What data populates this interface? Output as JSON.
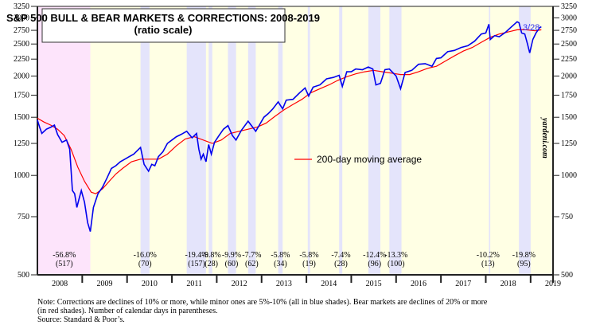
{
  "chart_data": {
    "type": "line",
    "title": "S&P 500 BULL & BEAR MARKETS & CORRECTIONS: 2008-2019",
    "subtitle": "(ratio scale)",
    "y_scale": "log",
    "ylim": [
      500,
      3250
    ],
    "y_ticks": [
      500,
      750,
      1000,
      1250,
      1500,
      1750,
      2000,
      2250,
      2500,
      2750,
      3000,
      3250
    ],
    "xlim": [
      2008.0,
      2019.5
    ],
    "x_ticks": [
      "2008",
      "2009",
      "2010",
      "2011",
      "2012",
      "2013",
      "2014",
      "2015",
      "2016",
      "2017",
      "2018",
      "2019"
    ],
    "legend": {
      "label": "200-day moving average",
      "color": "#ff0000",
      "position": "center-right"
    },
    "last_label": "3/28",
    "watermark": "yardeni.com",
    "colors": {
      "price": "#0000ee",
      "ma": "#ff0000",
      "bull": "#ffffe4",
      "bear": "#fde4fb",
      "correction": "#e4e4fb"
    },
    "bear_shades": [
      [
        2008.0,
        2009.18
      ]
    ],
    "correction_shades": [
      [
        2010.3,
        2010.5
      ],
      [
        2011.33,
        2011.76
      ],
      [
        2011.82,
        2011.9
      ],
      [
        2012.25,
        2012.43
      ],
      [
        2012.7,
        2012.87
      ],
      [
        2013.37,
        2013.47
      ],
      [
        2014.03,
        2014.08
      ],
      [
        2014.73,
        2014.8
      ],
      [
        2015.38,
        2015.65
      ],
      [
        2015.85,
        2016.12
      ],
      [
        2018.07,
        2018.1
      ],
      [
        2018.74,
        2019.0
      ]
    ],
    "annotations": [
      {
        "x": 2008.6,
        "pct": "-56.8%",
        "days": "(517)"
      },
      {
        "x": 2010.4,
        "pct": "-16.0%",
        "days": "(70)"
      },
      {
        "x": 2011.55,
        "pct": "-19.4%",
        "days": "(157)"
      },
      {
        "x": 2011.88,
        "pct": "-9.8%",
        "days": "(28)"
      },
      {
        "x": 2012.33,
        "pct": "-9.9%",
        "days": "(60)"
      },
      {
        "x": 2012.78,
        "pct": "-7.7%",
        "days": "(62)"
      },
      {
        "x": 2013.42,
        "pct": "-5.8%",
        "days": "(34)"
      },
      {
        "x": 2014.06,
        "pct": "-5.8%",
        "days": "(19)"
      },
      {
        "x": 2014.77,
        "pct": "-7.4%",
        "days": "(28)"
      },
      {
        "x": 2015.52,
        "pct": "-12.4%",
        "days": "(96)"
      },
      {
        "x": 2016.0,
        "pct": "-13.3%",
        "days": "(100)"
      },
      {
        "x": 2018.05,
        "pct": "-10.2%",
        "days": "(13)"
      },
      {
        "x": 2018.85,
        "pct": "-19.8%",
        "days": "(95)"
      }
    ],
    "series": [
      {
        "name": "S&P 500",
        "points": [
          [
            2008.0,
            1470
          ],
          [
            2008.05,
            1400
          ],
          [
            2008.1,
            1340
          ],
          [
            2008.2,
            1380
          ],
          [
            2008.3,
            1400
          ],
          [
            2008.38,
            1420
          ],
          [
            2008.45,
            1330
          ],
          [
            2008.55,
            1260
          ],
          [
            2008.65,
            1280
          ],
          [
            2008.72,
            1200
          ],
          [
            2008.78,
            900
          ],
          [
            2008.83,
            880
          ],
          [
            2008.88,
            800
          ],
          [
            2008.93,
            850
          ],
          [
            2008.98,
            900
          ],
          [
            2009.05,
            830
          ],
          [
            2009.12,
            720
          ],
          [
            2009.18,
            676
          ],
          [
            2009.25,
            800
          ],
          [
            2009.35,
            880
          ],
          [
            2009.45,
            920
          ],
          [
            2009.55,
            980
          ],
          [
            2009.65,
            1050
          ],
          [
            2009.75,
            1070
          ],
          [
            2009.85,
            1100
          ],
          [
            2009.95,
            1120
          ],
          [
            2010.05,
            1140
          ],
          [
            2010.15,
            1160
          ],
          [
            2010.3,
            1215
          ],
          [
            2010.38,
            1080
          ],
          [
            2010.48,
            1030
          ],
          [
            2010.55,
            1080
          ],
          [
            2010.62,
            1070
          ],
          [
            2010.7,
            1140
          ],
          [
            2010.8,
            1180
          ],
          [
            2010.9,
            1250
          ],
          [
            2011.0,
            1280
          ],
          [
            2011.1,
            1310
          ],
          [
            2011.2,
            1330
          ],
          [
            2011.33,
            1360
          ],
          [
            2011.45,
            1300
          ],
          [
            2011.55,
            1340
          ],
          [
            2011.6,
            1200
          ],
          [
            2011.65,
            1120
          ],
          [
            2011.7,
            1160
          ],
          [
            2011.76,
            1100
          ],
          [
            2011.82,
            1240
          ],
          [
            2011.88,
            1160
          ],
          [
            2011.95,
            1260
          ],
          [
            2012.05,
            1320
          ],
          [
            2012.15,
            1380
          ],
          [
            2012.25,
            1415
          ],
          [
            2012.35,
            1320
          ],
          [
            2012.43,
            1280
          ],
          [
            2012.55,
            1370
          ],
          [
            2012.7,
            1460
          ],
          [
            2012.8,
            1400
          ],
          [
            2012.87,
            1360
          ],
          [
            2012.95,
            1420
          ],
          [
            2013.05,
            1500
          ],
          [
            2013.15,
            1540
          ],
          [
            2013.25,
            1590
          ],
          [
            2013.37,
            1670
          ],
          [
            2013.47,
            1590
          ],
          [
            2013.55,
            1690
          ],
          [
            2013.7,
            1700
          ],
          [
            2013.85,
            1780
          ],
          [
            2013.97,
            1840
          ],
          [
            2014.05,
            1740
          ],
          [
            2014.15,
            1850
          ],
          [
            2014.3,
            1880
          ],
          [
            2014.45,
            1960
          ],
          [
            2014.6,
            1980
          ],
          [
            2014.73,
            2010
          ],
          [
            2014.8,
            1860
          ],
          [
            2014.9,
            2060
          ],
          [
            2015.0,
            2060
          ],
          [
            2015.1,
            2100
          ],
          [
            2015.25,
            2090
          ],
          [
            2015.38,
            2130
          ],
          [
            2015.48,
            2100
          ],
          [
            2015.55,
            1880
          ],
          [
            2015.65,
            1900
          ],
          [
            2015.75,
            2090
          ],
          [
            2015.85,
            2100
          ],
          [
            2016.0,
            2000
          ],
          [
            2016.1,
            1830
          ],
          [
            2016.2,
            2050
          ],
          [
            2016.35,
            2080
          ],
          [
            2016.5,
            2170
          ],
          [
            2016.65,
            2180
          ],
          [
            2016.8,
            2140
          ],
          [
            2016.9,
            2260
          ],
          [
            2017.0,
            2270
          ],
          [
            2017.15,
            2370
          ],
          [
            2017.3,
            2390
          ],
          [
            2017.45,
            2440
          ],
          [
            2017.6,
            2470
          ],
          [
            2017.75,
            2550
          ],
          [
            2017.9,
            2680
          ],
          [
            2018.0,
            2700
          ],
          [
            2018.07,
            2870
          ],
          [
            2018.1,
            2580
          ],
          [
            2018.2,
            2650
          ],
          [
            2018.3,
            2630
          ],
          [
            2018.45,
            2720
          ],
          [
            2018.55,
            2800
          ],
          [
            2018.7,
            2920
          ],
          [
            2018.74,
            2900
          ],
          [
            2018.8,
            2700
          ],
          [
            2018.87,
            2680
          ],
          [
            2018.93,
            2500
          ],
          [
            2018.98,
            2350
          ],
          [
            2019.05,
            2580
          ],
          [
            2019.12,
            2700
          ],
          [
            2019.2,
            2800
          ],
          [
            2019.24,
            2820
          ]
        ]
      },
      {
        "name": "200-day moving average",
        "points": [
          [
            2008.0,
            1490
          ],
          [
            2008.15,
            1450
          ],
          [
            2008.3,
            1420
          ],
          [
            2008.45,
            1380
          ],
          [
            2008.6,
            1320
          ],
          [
            2008.75,
            1200
          ],
          [
            2008.9,
            1060
          ],
          [
            2009.05,
            960
          ],
          [
            2009.2,
            890
          ],
          [
            2009.3,
            880
          ],
          [
            2009.45,
            910
          ],
          [
            2009.6,
            960
          ],
          [
            2009.75,
            1010
          ],
          [
            2009.9,
            1050
          ],
          [
            2010.1,
            1100
          ],
          [
            2010.3,
            1120
          ],
          [
            2010.5,
            1120
          ],
          [
            2010.7,
            1120
          ],
          [
            2010.9,
            1160
          ],
          [
            2011.1,
            1230
          ],
          [
            2011.3,
            1290
          ],
          [
            2011.5,
            1310
          ],
          [
            2011.7,
            1280
          ],
          [
            2011.9,
            1250
          ],
          [
            2012.1,
            1280
          ],
          [
            2012.3,
            1340
          ],
          [
            2012.5,
            1360
          ],
          [
            2012.7,
            1380
          ],
          [
            2012.9,
            1400
          ],
          [
            2013.1,
            1440
          ],
          [
            2013.3,
            1510
          ],
          [
            2013.5,
            1580
          ],
          [
            2013.7,
            1640
          ],
          [
            2013.9,
            1700
          ],
          [
            2014.1,
            1780
          ],
          [
            2014.3,
            1830
          ],
          [
            2014.5,
            1880
          ],
          [
            2014.7,
            1940
          ],
          [
            2014.9,
            1990
          ],
          [
            2015.1,
            2030
          ],
          [
            2015.3,
            2060
          ],
          [
            2015.5,
            2080
          ],
          [
            2015.7,
            2060
          ],
          [
            2015.9,
            2040
          ],
          [
            2016.1,
            2020
          ],
          [
            2016.3,
            2020
          ],
          [
            2016.5,
            2060
          ],
          [
            2016.7,
            2110
          ],
          [
            2016.9,
            2140
          ],
          [
            2017.1,
            2220
          ],
          [
            2017.3,
            2300
          ],
          [
            2017.5,
            2380
          ],
          [
            2017.7,
            2440
          ],
          [
            2017.9,
            2530
          ],
          [
            2018.1,
            2620
          ],
          [
            2018.3,
            2680
          ],
          [
            2018.5,
            2720
          ],
          [
            2018.7,
            2760
          ],
          [
            2018.9,
            2760
          ],
          [
            2019.1,
            2740
          ],
          [
            2019.24,
            2760
          ]
        ]
      }
    ]
  },
  "note": {
    "line1": "Note: Corrections are declines of 10% or more, while minor ones are 5%-10% (all in blue shades).  Bear markets are declines of 20% or more",
    "line2": "(in red shades). Number of calendar days in parentheses.",
    "line3": "Source: Standard & Poor’s."
  }
}
